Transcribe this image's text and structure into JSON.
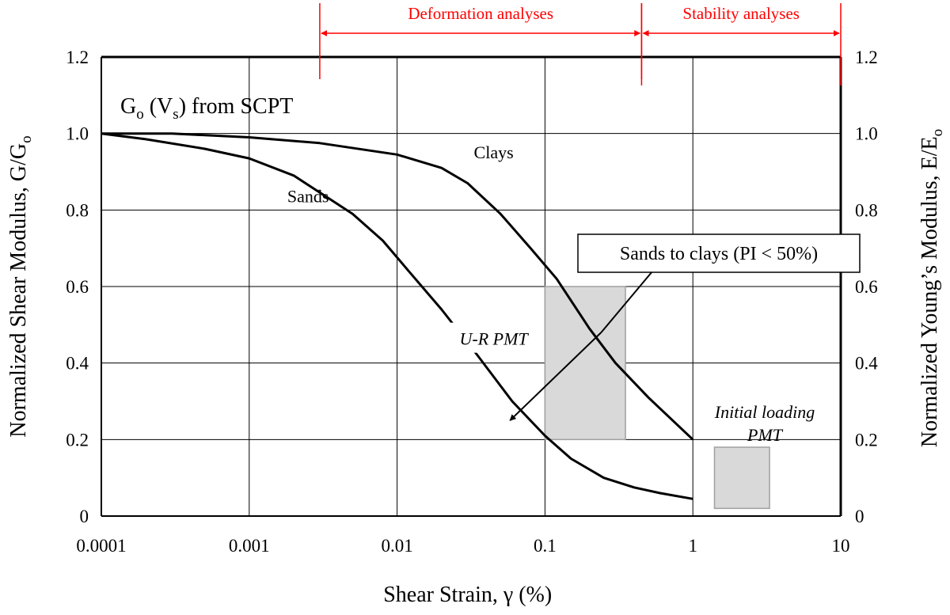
{
  "chart_data": {
    "type": "line",
    "xscale": "log",
    "xlim": [
      0.0001,
      10
    ],
    "ylim": [
      0,
      1.2
    ],
    "grid": true,
    "xlabel": "Shear Strain, γ (%)",
    "ylabel": "Normalized Shear Modulus, G/G",
    "ylabel_sub": "o",
    "y2label": "Normalized Young’s Modulus, E/E",
    "y2label_sub": "o",
    "x_ticks": [
      {
        "value": 0.0001,
        "label": "0.0001"
      },
      {
        "value": 0.001,
        "label": "0.001"
      },
      {
        "value": 0.01,
        "label": "0.01"
      },
      {
        "value": 0.1,
        "label": "0.1"
      },
      {
        "value": 1,
        "label": "1"
      },
      {
        "value": 10,
        "label": "10"
      }
    ],
    "y_ticks": [
      {
        "value": 0,
        "label": "0"
      },
      {
        "value": 0.2,
        "label": "0.2"
      },
      {
        "value": 0.4,
        "label": "0.4"
      },
      {
        "value": 0.6,
        "label": "0.6"
      },
      {
        "value": 0.8,
        "label": "0.8"
      },
      {
        "value": 1.0,
        "label": "1.0"
      },
      {
        "value": 1.2,
        "label": "1.2"
      }
    ],
    "series": [
      {
        "name": "Clays",
        "color": "#000000",
        "x": [
          0.0001,
          0.0003,
          0.001,
          0.003,
          0.01,
          0.02,
          0.03,
          0.05,
          0.08,
          0.12,
          0.2,
          0.3,
          0.5,
          1
        ],
        "y": [
          1.0,
          1.0,
          0.99,
          0.975,
          0.945,
          0.91,
          0.87,
          0.79,
          0.7,
          0.62,
          0.49,
          0.4,
          0.31,
          0.2
        ]
      },
      {
        "name": "Sands",
        "color": "#000000",
        "x": [
          0.0001,
          0.0002,
          0.0005,
          0.001,
          0.002,
          0.005,
          0.008,
          0.012,
          0.02,
          0.035,
          0.06,
          0.1,
          0.15,
          0.25,
          0.4,
          0.6,
          1
        ],
        "y": [
          1.0,
          0.985,
          0.96,
          0.935,
          0.89,
          0.79,
          0.72,
          0.64,
          0.54,
          0.42,
          0.3,
          0.21,
          0.15,
          0.1,
          0.075,
          0.06,
          0.045
        ]
      }
    ],
    "series_labels": [
      {
        "text": "Clays",
        "x": 0.045,
        "y": 0.935
      },
      {
        "text": "Sands",
        "x": 0.0025,
        "y": 0.82
      }
    ],
    "annotations": {
      "go_title": {
        "main": "G",
        "sub1": "o",
        "mid": " (V",
        "sub2": "s",
        "end": ") from SCPT"
      },
      "sands_to_clays": {
        "text": "Sands to clays (PI < 50%)",
        "arrow_from": [
          0.24,
          0.48
        ],
        "arrow_to_upper": [
          0.72,
          0.7
        ],
        "arrow_to_lower": [
          0.058,
          0.25
        ]
      },
      "ur_pmt": {
        "text": "U-R PMT",
        "x": 0.045,
        "y": 0.46
      },
      "initial_loading": {
        "line1": "Initial loading",
        "line2": "PMT",
        "x": 3.2
      },
      "ur_box": {
        "x1": 0.1,
        "x2": 0.35,
        "y1": 0.2,
        "y2": 0.6,
        "color": "#d9d9d9"
      },
      "il_box": {
        "x1": 1.4,
        "x2": 3.3,
        "y1": 0.02,
        "y2": 0.18,
        "color": "#d9d9d9"
      }
    },
    "ranges": [
      {
        "label": "Deformation analyses",
        "x1": 0.003,
        "x2": 0.45,
        "color": "#ff0000"
      },
      {
        "label": "Stability analyses",
        "x1": 0.45,
        "x2": 10,
        "color": "#ff0000"
      }
    ]
  }
}
